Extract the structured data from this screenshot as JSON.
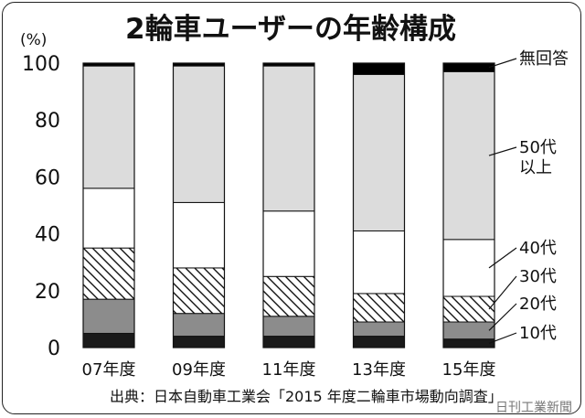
{
  "chart_data": {
    "type": "bar",
    "stacked": true,
    "title": "2輪車ユーザーの年齢構成",
    "y_unit": "(%)",
    "ylim": [
      0,
      100
    ],
    "y_ticks": [
      0,
      20,
      40,
      60,
      80,
      100
    ],
    "categories": [
      "07年度",
      "09年度",
      "11年度",
      "13年度",
      "15年度"
    ],
    "series": [
      {
        "name": "10代",
        "values": [
          5,
          4,
          4,
          4,
          3
        ],
        "fill": "#1a1a1a"
      },
      {
        "name": "20代",
        "values": [
          12,
          8,
          7,
          5,
          6
        ],
        "fill": "#8c8c8c"
      },
      {
        "name": "30代",
        "values": [
          18,
          16,
          14,
          10,
          9
        ],
        "fill": "hatch"
      },
      {
        "name": "40代",
        "values": [
          21,
          23,
          23,
          22,
          20
        ],
        "fill": "#ffffff"
      },
      {
        "name": "50代\n以上",
        "values": [
          43,
          48,
          51,
          55,
          59
        ],
        "fill": "#dcdcdc"
      },
      {
        "name": "無回答",
        "values": [
          1,
          1,
          1,
          4,
          3
        ],
        "fill": "#000000"
      }
    ],
    "source": "出典：日本自動車工業会「2015 年度二輪車市場動向調査」",
    "credit": "日刊工業新聞",
    "grid": false,
    "legend": "right, labels with leader lines"
  }
}
